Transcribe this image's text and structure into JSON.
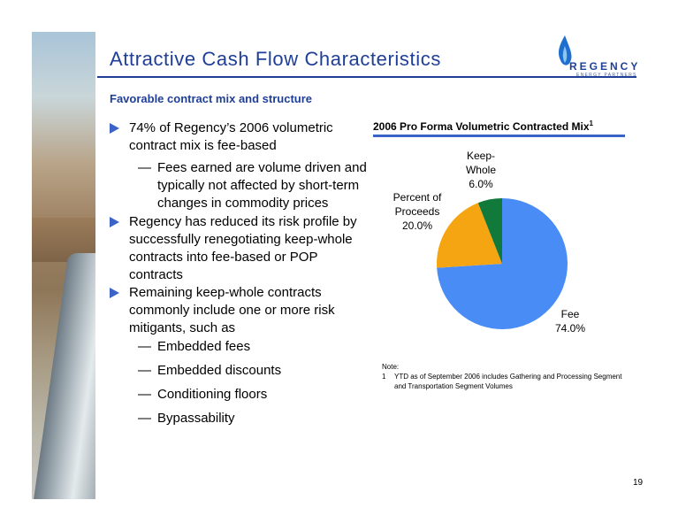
{
  "title": "Attractive Cash Flow Characteristics",
  "subtitle": "Favorable contract mix and structure",
  "logo": {
    "brand": "REGENCY",
    "sub": "ENERGY PARTNERS"
  },
  "bullets": [
    {
      "level": 1,
      "text": "74% of Regency’s 2006 volumetric contract mix is fee-based"
    },
    {
      "level": 2,
      "text": "Fees earned are volume driven and typically not affected by short-term changes in commodity prices"
    },
    {
      "level": 1,
      "text": "Regency has reduced its risk profile by successfully renegotiating keep-whole contracts into fee-based or POP contracts"
    },
    {
      "level": 1,
      "text": "Remaining keep-whole contracts commonly include one or more risk mitigants, such as"
    },
    {
      "level": 2,
      "text": "Embedded fees"
    },
    {
      "level": 2,
      "text": "Embedded discounts"
    },
    {
      "level": 2,
      "text": "Conditioning floors"
    },
    {
      "level": 2,
      "text": "Bypassability"
    }
  ],
  "dash": "—",
  "chart_data": {
    "type": "pie",
    "title": "2006 Pro Forma Volumetric Contracted Mix",
    "title_footnote": "1",
    "slices": [
      {
        "name": "Fee",
        "value": 74.0,
        "label": "74.0%",
        "color": "#4a8cf5"
      },
      {
        "name": "Percent of Proceeds",
        "value": 20.0,
        "label": "20.0%",
        "color": "#f5a512"
      },
      {
        "name": "Keep-Whole",
        "value": 6.0,
        "label": "6.0%",
        "color": "#117a3a"
      }
    ]
  },
  "note": {
    "heading": "Note:",
    "number": "1",
    "text": "YTD as of September 2006 includes Gathering and Processing Segment and Transportation Segment Volumes"
  },
  "page_number": "19"
}
